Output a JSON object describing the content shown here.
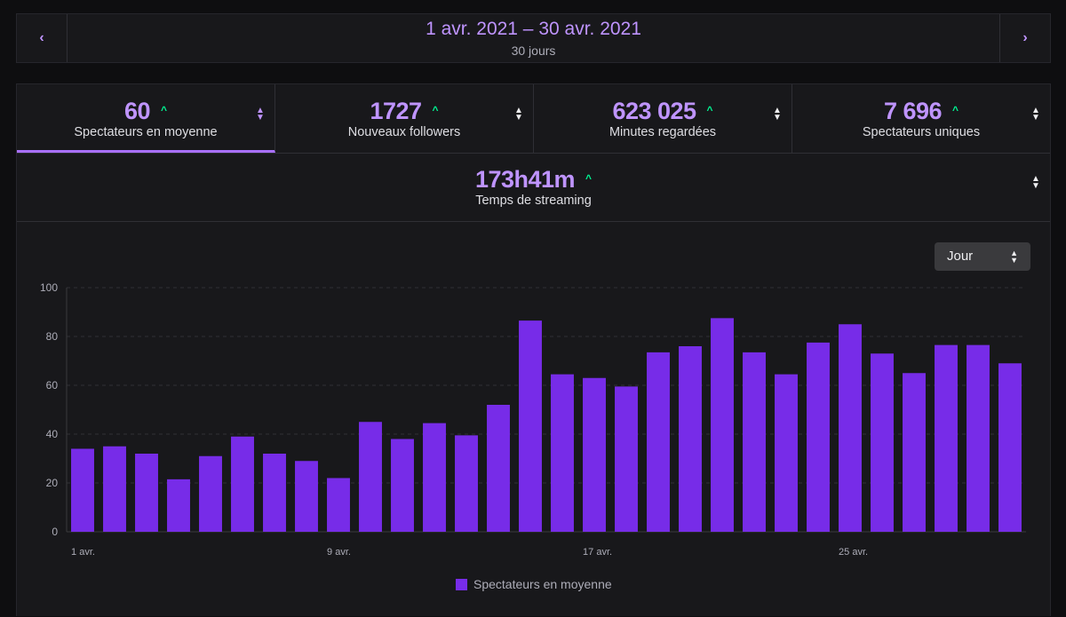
{
  "date_bar": {
    "prev_icon": "‹",
    "next_icon": "›",
    "range": "1 avr. 2021 – 30 avr. 2021",
    "days": "30 jours"
  },
  "stats": [
    {
      "value": "60",
      "label": "Spectateurs en moyenne",
      "active": true
    },
    {
      "value": "1727",
      "label": "Nouveaux followers",
      "active": false
    },
    {
      "value": "623 025",
      "label": "Minutes regardées",
      "active": false
    },
    {
      "value": "7 696",
      "label": "Spectateurs uniques",
      "active": false
    }
  ],
  "streaming": {
    "value": "173h41m",
    "label": "Temps de streaming"
  },
  "trend_icon": "^",
  "granularity": {
    "selected": "Jour"
  },
  "colors": {
    "accent": "#bf94ff",
    "bar": "#772ce8",
    "up": "#00f593"
  },
  "chart_data": {
    "type": "bar",
    "categories": [
      "1 avr.",
      "2 avr.",
      "3 avr.",
      "4 avr.",
      "5 avr.",
      "6 avr.",
      "7 avr.",
      "8 avr.",
      "9 avr.",
      "10 avr.",
      "11 avr.",
      "12 avr.",
      "13 avr.",
      "14 avr.",
      "15 avr.",
      "16 avr.",
      "17 avr.",
      "18 avr.",
      "19 avr.",
      "20 avr.",
      "21 avr.",
      "22 avr.",
      "23 avr.",
      "24 avr.",
      "25 avr.",
      "26 avr.",
      "27 avr.",
      "28 avr.",
      "29 avr.",
      "30 avr."
    ],
    "tick_labels": [
      "1 avr.",
      "9 avr.",
      "17 avr.",
      "25 avr."
    ],
    "tick_indices": [
      0,
      8,
      16,
      24
    ],
    "values": [
      34,
      35,
      32,
      21.5,
      31,
      39,
      32,
      29,
      22,
      45,
      38,
      44.5,
      39.5,
      52,
      86.5,
      64.5,
      63,
      59.5,
      73.5,
      76,
      87.5,
      73.5,
      64.5,
      77.5,
      85,
      73,
      65,
      76.5,
      76.5,
      69
    ],
    "series_name": "Spectateurs en moyenne",
    "yticks": [
      0,
      20,
      40,
      60,
      80,
      100
    ],
    "ylim": [
      0,
      100
    ],
    "grid": true,
    "legend": "bottom-center"
  }
}
